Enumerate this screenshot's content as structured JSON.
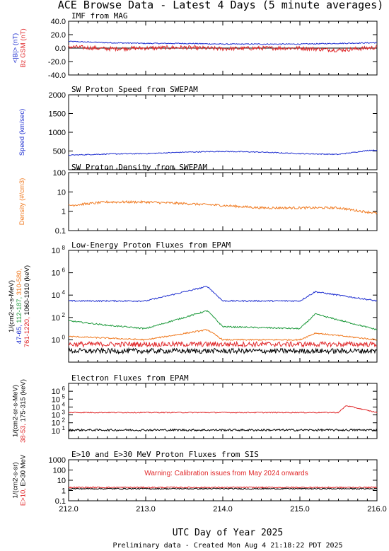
{
  "title": "ACE Browse Data - Latest 4 Days (5 minute averages)",
  "xlabel": "UTC Day of Year 2025",
  "footer": "Preliminary data - Created Mon Aug  4 21:18:22 PDT 2025",
  "colors": {
    "blue": "#1f2fd0",
    "red": "#e0282a",
    "orange": "#f07a20",
    "green": "#1e9a3c",
    "black": "#000000"
  },
  "chart_data": [
    {
      "type": "line",
      "title": "IMF from MAG",
      "xlim": [
        212.0,
        216.0
      ],
      "ylim": [
        -40,
        40
      ],
      "yticks": [
        "40.0",
        "20.0",
        "0.0",
        "-20.0",
        "-40.0"
      ],
      "ylabel_parts": [
        {
          "text": "<|B|> (nT)",
          "color": "#1f2fd0"
        },
        {
          "text": "Bz GSM (nT)",
          "color": "#e0282a"
        }
      ],
      "series": [
        {
          "name": "<|B|>",
          "color": "#1f2fd0",
          "x": [
            212.0,
            212.5,
            213.0,
            213.5,
            214.0,
            214.5,
            215.0,
            215.5,
            216.0
          ],
          "y": [
            10,
            8,
            7,
            7,
            6,
            6,
            6,
            7,
            8
          ]
        },
        {
          "name": "Bz GSM",
          "color": "#e0282a",
          "x": [
            212.0,
            212.5,
            213.0,
            213.5,
            214.0,
            214.5,
            215.0,
            215.5,
            216.0
          ],
          "y": [
            2,
            -1,
            0,
            1,
            -1,
            0,
            0,
            -3,
            1
          ]
        }
      ]
    },
    {
      "type": "line",
      "title": "SW Proton Speed from SWEPAM",
      "xlim": [
        212.0,
        216.0
      ],
      "ylim": [
        0,
        2000
      ],
      "yticks": [
        "2000",
        "1500",
        "1000",
        "500"
      ],
      "ylabel_parts": [
        {
          "text": "Speed (km/sec)",
          "color": "#1f2fd0"
        }
      ],
      "series": [
        {
          "name": "Speed",
          "color": "#1f2fd0",
          "x": [
            212.0,
            212.5,
            213.0,
            213.5,
            214.0,
            214.5,
            215.0,
            215.5,
            215.9,
            216.0
          ],
          "y": [
            390,
            420,
            430,
            470,
            490,
            470,
            430,
            410,
            520,
            520
          ]
        }
      ]
    },
    {
      "type": "line",
      "title": "SW Proton Density from SWEPAM",
      "xlim": [
        212.0,
        216.0
      ],
      "ylim": [
        0.1,
        100
      ],
      "log_y": true,
      "yticks": [
        "100",
        "10",
        "1",
        "0.1"
      ],
      "ylabel_parts": [
        {
          "text": "Density (#/cm3)",
          "color": "#f07a20"
        }
      ],
      "series": [
        {
          "name": "Density",
          "color": "#f07a20",
          "x": [
            212.0,
            212.5,
            213.0,
            213.5,
            214.0,
            214.5,
            215.0,
            215.5,
            215.8,
            216.0
          ],
          "y": [
            2,
            3,
            3,
            2.5,
            2,
            1.5,
            1.5,
            1.5,
            1,
            0.8
          ]
        }
      ]
    },
    {
      "type": "line",
      "title": "Low-Energy Proton Fluxes from EPAM",
      "xlim": [
        212.0,
        216.0
      ],
      "ylim": [
        0.01,
        100000000
      ],
      "log_y": true,
      "yticks": [
        "10",
        "10",
        "10",
        "10",
        "10"
      ],
      "ytick_exponents": [
        "8",
        "6",
        "4",
        "2",
        "0"
      ],
      "ylabel_parts": [
        {
          "text": "1/(cm2-sr-s-MeV)",
          "color": "#000000"
        },
        {
          "text": "47-65,",
          "color": "#1f2fd0"
        },
        {
          "text": "112-187,",
          "color": "#1e9a3c"
        },
        {
          "text": "310-580,",
          "color": "#f07a20"
        },
        {
          "text": "761-1220,",
          "color": "#e0282a"
        },
        {
          "text": "1060-1910 (keV)",
          "color": "#000000"
        }
      ],
      "series": [
        {
          "name": "47-65 keV",
          "color": "#1f2fd0",
          "x": [
            212.0,
            213.0,
            213.8,
            214.0,
            215.0,
            215.2,
            216.0
          ],
          "y": [
            3000,
            3000,
            60000,
            3000,
            3000,
            20000,
            3000
          ]
        },
        {
          "name": "112-187 keV",
          "color": "#1e9a3c",
          "x": [
            212.0,
            212.5,
            213.0,
            213.8,
            214.0,
            215.0,
            215.2,
            216.0
          ],
          "y": [
            50,
            20,
            10,
            400,
            15,
            10,
            200,
            8
          ]
        },
        {
          "name": "310-580 keV",
          "color": "#f07a20",
          "x": [
            212.0,
            213.0,
            213.8,
            214.0,
            215.0,
            215.2,
            216.0
          ],
          "y": [
            2,
            1,
            8,
            1,
            1,
            4,
            1
          ]
        },
        {
          "name": "761-1220 keV",
          "color": "#e0282a",
          "x": [
            212.0,
            213.0,
            214.0,
            215.0,
            216.0
          ],
          "y": [
            0.4,
            0.4,
            0.4,
            0.4,
            0.4
          ]
        },
        {
          "name": "1060-1910 keV",
          "color": "#000000",
          "x": [
            212.0,
            213.0,
            214.0,
            215.0,
            216.0
          ],
          "y": [
            0.1,
            0.1,
            0.1,
            0.1,
            0.1
          ]
        }
      ]
    },
    {
      "type": "line",
      "title": "Electron Fluxes from EPAM",
      "xlim": [
        212.0,
        216.0
      ],
      "ylim": [
        1,
        10000000
      ],
      "log_y": true,
      "yticks": [
        "10",
        "10",
        "10",
        "10",
        "10",
        "10"
      ],
      "ytick_exponents": [
        "6",
        "5",
        "4",
        "3",
        "2",
        "1"
      ],
      "ylabel_parts": [
        {
          "text": "1/(cm2-sr-s-MeV)",
          "color": "#000000"
        },
        {
          "text": "38-53,",
          "color": "#e0282a"
        },
        {
          "text": "175-315 (keV)",
          "color": "#000000"
        }
      ],
      "series": [
        {
          "name": "38-53 keV",
          "color": "#e0282a",
          "x": [
            212.0,
            213.0,
            214.0,
            215.0,
            215.5,
            215.6,
            216.0
          ],
          "y": [
            2000,
            2000,
            2000,
            2000,
            2000,
            15000,
            2000
          ]
        },
        {
          "name": "175-315 keV",
          "color": "#000000",
          "x": [
            212.0,
            213.0,
            214.0,
            215.0,
            216.0
          ],
          "y": [
            12,
            12,
            12,
            12,
            12
          ]
        }
      ]
    },
    {
      "type": "line",
      "title": "E>10 and E>30 MeV Proton Fluxes from SIS",
      "xlim": [
        212.0,
        216.0
      ],
      "ylim": [
        0.1,
        1000
      ],
      "log_y": true,
      "yticks": [
        "1000",
        "100",
        "10",
        "1",
        "0.1"
      ],
      "ylabel_parts": [
        {
          "text": "1/(cm2-s-sr)",
          "color": "#000000"
        },
        {
          "text": "E>10,",
          "color": "#e0282a"
        },
        {
          "text": "E>30 MeV",
          "color": "#000000"
        }
      ],
      "annotation": "Warning: Calibration issues from May 2024 onwards",
      "series": [
        {
          "name": "E>10 MeV",
          "color": "#e0282a",
          "x": [
            212.0,
            213.0,
            214.0,
            215.0,
            216.0
          ],
          "y": [
            2,
            2,
            2,
            2,
            2
          ]
        },
        {
          "name": "E>30 MeV",
          "color": "#000000",
          "x": [
            212.0,
            213.0,
            214.0,
            215.0,
            216.0
          ],
          "y": [
            1.5,
            1.5,
            1.5,
            1.5,
            1.5
          ]
        }
      ]
    }
  ],
  "xticks": [
    "212.0",
    "213.0",
    "214.0",
    "215.0",
    "216.0"
  ]
}
